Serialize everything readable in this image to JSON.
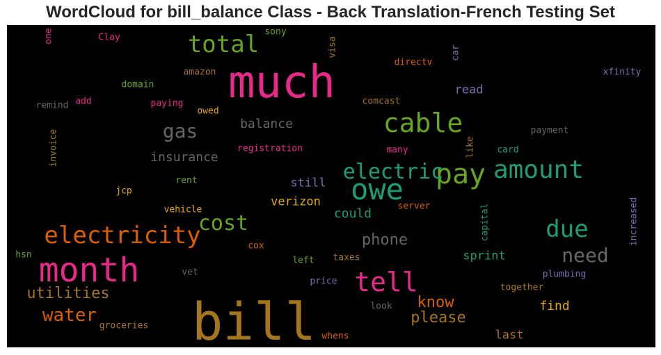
{
  "chart_data": {
    "type": "wordcloud",
    "title": "WordCloud for bill_balance Class - Back Translation-French Testing Set",
    "background": "#000000",
    "colormap": "Dark2",
    "words": [
      {
        "text": "bill",
        "color": "#a6761d"
      },
      {
        "text": "much",
        "color": "#e7298a"
      },
      {
        "text": "month",
        "color": "#e7298a"
      },
      {
        "text": "owe",
        "color": "#1b9e77"
      },
      {
        "text": "pay",
        "color": "#66a61e"
      },
      {
        "text": "cable",
        "color": "#66a61e"
      },
      {
        "text": "amount",
        "color": "#1b9e77"
      },
      {
        "text": "electricity",
        "color": "#d95f02"
      },
      {
        "text": "tell",
        "color": "#e7298a"
      },
      {
        "text": "total",
        "color": "#66a61e"
      },
      {
        "text": "electric",
        "color": "#1b9e77"
      },
      {
        "text": "due",
        "color": "#1b9e77"
      },
      {
        "text": "gas",
        "color": "#666666"
      },
      {
        "text": "cost",
        "color": "#66a61e"
      },
      {
        "text": "need",
        "color": "#666666"
      },
      {
        "text": "water",
        "color": "#d95f02"
      },
      {
        "text": "utilities",
        "color": "#a6761d"
      },
      {
        "text": "phone",
        "color": "#666666"
      },
      {
        "text": "please",
        "color": "#a6761d"
      },
      {
        "text": "know",
        "color": "#d95f02"
      },
      {
        "text": "insurance",
        "color": "#666666"
      },
      {
        "text": "balance",
        "color": "#666666"
      },
      {
        "text": "verizon",
        "color": "#e6ab02"
      },
      {
        "text": "could",
        "color": "#1b9e77"
      },
      {
        "text": "sprint",
        "color": "#1b9e77"
      },
      {
        "text": "find",
        "color": "#e6ab02"
      },
      {
        "text": "last",
        "color": "#a6761d"
      },
      {
        "text": "read",
        "color": "#7570b3"
      },
      {
        "text": "still",
        "color": "#7570b3"
      },
      {
        "text": "amazon",
        "color": "#a6761d"
      },
      {
        "text": "domain",
        "color": "#66a61e"
      },
      {
        "text": "remind",
        "color": "#666666"
      },
      {
        "text": "add",
        "color": "#e7298a"
      },
      {
        "text": "paying",
        "color": "#e7298a"
      },
      {
        "text": "owed",
        "color": "#e6ab02"
      },
      {
        "text": "Clay",
        "color": "#e7298a"
      },
      {
        "text": "sony",
        "color": "#66a61e"
      },
      {
        "text": "directv",
        "color": "#d95f02"
      },
      {
        "text": "comcast",
        "color": "#a6761d"
      },
      {
        "text": "xfinity",
        "color": "#7570b3"
      },
      {
        "text": "payment",
        "color": "#666666"
      },
      {
        "text": "card",
        "color": "#1b9e77"
      },
      {
        "text": "many",
        "color": "#e7298a"
      },
      {
        "text": "registration",
        "color": "#e7298a"
      },
      {
        "text": "jcp",
        "color": "#e6ab02"
      },
      {
        "text": "rent",
        "color": "#66a61e"
      },
      {
        "text": "vehicle",
        "color": "#e6ab02"
      },
      {
        "text": "server",
        "color": "#d95f02"
      },
      {
        "text": "hsn",
        "color": "#66a61e"
      },
      {
        "text": "cox",
        "color": "#d95f02"
      },
      {
        "text": "left",
        "color": "#66a61e"
      },
      {
        "text": "taxes",
        "color": "#a6761d"
      },
      {
        "text": "vet",
        "color": "#666666"
      },
      {
        "text": "price",
        "color": "#7570b3"
      },
      {
        "text": "plumbing",
        "color": "#7570b3"
      },
      {
        "text": "together",
        "color": "#a6761d"
      },
      {
        "text": "look",
        "color": "#666666"
      },
      {
        "text": "groceries",
        "color": "#a6761d"
      },
      {
        "text": "whens",
        "color": "#d95f02"
      },
      {
        "text": "one",
        "color": "#e7298a"
      },
      {
        "text": "visa",
        "color": "#a6761d"
      },
      {
        "text": "car",
        "color": "#7570b3"
      },
      {
        "text": "invoice",
        "color": "#a6761d"
      },
      {
        "text": "like",
        "color": "#a6761d"
      },
      {
        "text": "capital",
        "color": "#1b9e77"
      },
      {
        "text": "increased",
        "color": "#7570b3"
      }
    ]
  }
}
